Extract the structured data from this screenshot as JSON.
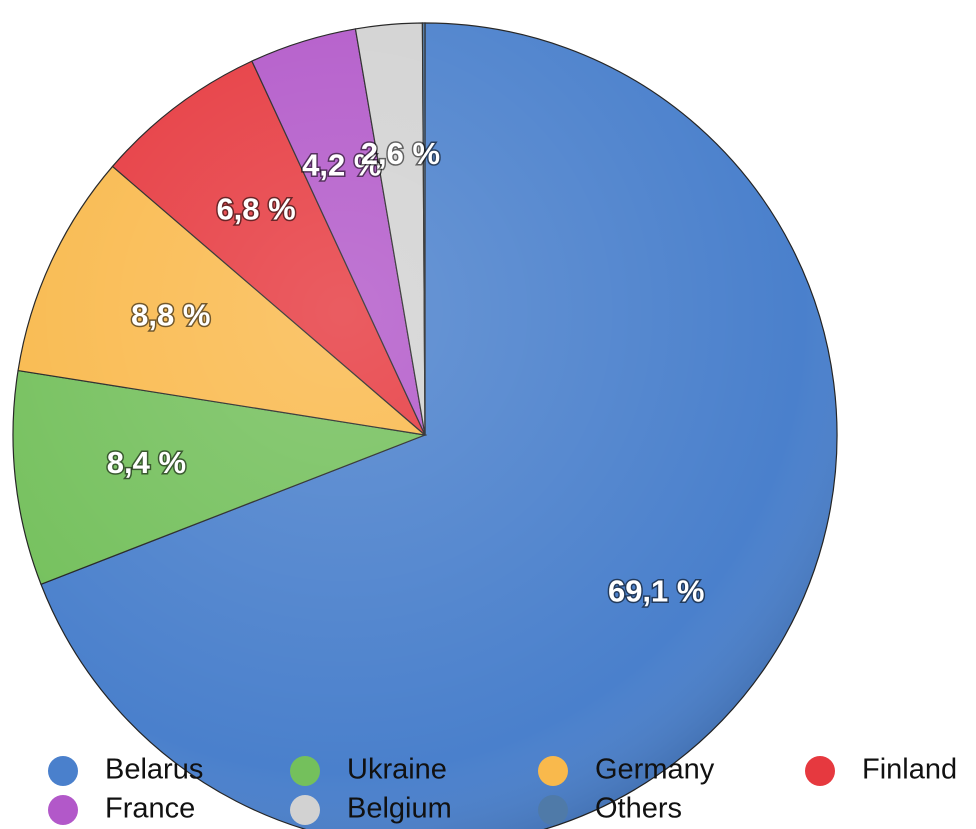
{
  "chart_data": {
    "type": "pie",
    "categories": [
      "Belarus",
      "Ukraine",
      "Germany",
      "Finland",
      "France",
      "Belgium",
      "Others"
    ],
    "values": [
      69.1,
      8.4,
      8.8,
      6.8,
      4.2,
      2.6,
      0.1
    ],
    "value_labels": [
      "69,1 %",
      "8,4 %",
      "8,8 %",
      "6,8 %",
      "4,2 %",
      "2,6 %",
      null
    ],
    "colors": [
      "#4a80cc",
      "#74c05c",
      "#f9b94c",
      "#e6393f",
      "#b258c9",
      "#d2d2d2",
      "#4f7aa8"
    ],
    "legend": "bottom"
  }
}
